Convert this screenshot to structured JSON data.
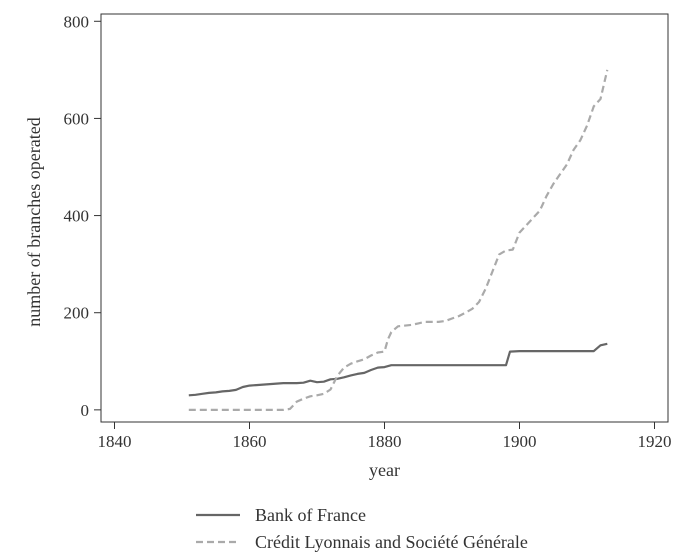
{
  "chart_data": {
    "type": "line",
    "title": "",
    "xlabel": "year",
    "ylabel": "number of branches operated",
    "xlim": [
      1838,
      1922
    ],
    "ylim": [
      -25,
      815
    ],
    "xticks": [
      1840,
      1860,
      1880,
      1900,
      1920
    ],
    "yticks": [
      0,
      200,
      400,
      600,
      800
    ],
    "grid": false,
    "legend_position": "bottom",
    "series": [
      {
        "name": "Bank of France",
        "color": "#666666",
        "dash": "solid",
        "points": [
          [
            1851,
            30
          ],
          [
            1852,
            31
          ],
          [
            1853,
            33
          ],
          [
            1854,
            35
          ],
          [
            1855,
            36
          ],
          [
            1856,
            38
          ],
          [
            1857,
            39
          ],
          [
            1858,
            41
          ],
          [
            1859,
            47
          ],
          [
            1860,
            50
          ],
          [
            1861,
            51
          ],
          [
            1862,
            52
          ],
          [
            1863,
            53
          ],
          [
            1864,
            54
          ],
          [
            1865,
            55
          ],
          [
            1866,
            55
          ],
          [
            1867,
            55
          ],
          [
            1868,
            56
          ],
          [
            1869,
            60
          ],
          [
            1870,
            57
          ],
          [
            1871,
            58
          ],
          [
            1872,
            63
          ],
          [
            1873,
            64
          ],
          [
            1874,
            67
          ],
          [
            1875,
            71
          ],
          [
            1876,
            74
          ],
          [
            1877,
            76
          ],
          [
            1878,
            82
          ],
          [
            1879,
            87
          ],
          [
            1880,
            88
          ],
          [
            1881,
            92
          ],
          [
            1885,
            92
          ],
          [
            1890,
            92
          ],
          [
            1895,
            92
          ],
          [
            1898,
            92
          ],
          [
            1898.6,
            120
          ],
          [
            1900,
            121
          ],
          [
            1905,
            121
          ],
          [
            1910,
            121
          ],
          [
            1911,
            121
          ],
          [
            1912,
            133
          ],
          [
            1913,
            136
          ]
        ]
      },
      {
        "name": "Crédit Lyonnais and Société Générale",
        "color": "#aaaaaa",
        "dash": "dashed",
        "points": [
          [
            1851,
            0
          ],
          [
            1860,
            0
          ],
          [
            1865,
            0
          ],
          [
            1866,
            2
          ],
          [
            1867,
            17
          ],
          [
            1868,
            23
          ],
          [
            1869,
            28
          ],
          [
            1870,
            30
          ],
          [
            1871,
            33
          ],
          [
            1872,
            42
          ],
          [
            1873,
            70
          ],
          [
            1874,
            87
          ],
          [
            1875,
            95
          ],
          [
            1876,
            100
          ],
          [
            1877,
            104
          ],
          [
            1878,
            112
          ],
          [
            1879,
            118
          ],
          [
            1880,
            120
          ],
          [
            1880.5,
            145
          ],
          [
            1881,
            160
          ],
          [
            1882,
            172
          ],
          [
            1884,
            175
          ],
          [
            1885,
            178
          ],
          [
            1886,
            181
          ],
          [
            1888,
            181
          ],
          [
            1889,
            183
          ],
          [
            1890,
            188
          ],
          [
            1891,
            193
          ],
          [
            1892,
            200
          ],
          [
            1893,
            208
          ],
          [
            1894,
            222
          ],
          [
            1895,
            250
          ],
          [
            1896,
            285
          ],
          [
            1897,
            320
          ],
          [
            1898,
            328
          ],
          [
            1899,
            330
          ],
          [
            1900,
            365
          ],
          [
            1901,
            380
          ],
          [
            1902,
            395
          ],
          [
            1903,
            410
          ],
          [
            1904,
            440
          ],
          [
            1905,
            465
          ],
          [
            1906,
            485
          ],
          [
            1907,
            505
          ],
          [
            1908,
            535
          ],
          [
            1909,
            555
          ],
          [
            1910,
            585
          ],
          [
            1911,
            625
          ],
          [
            1912,
            640
          ],
          [
            1913,
            700
          ]
        ]
      }
    ]
  }
}
